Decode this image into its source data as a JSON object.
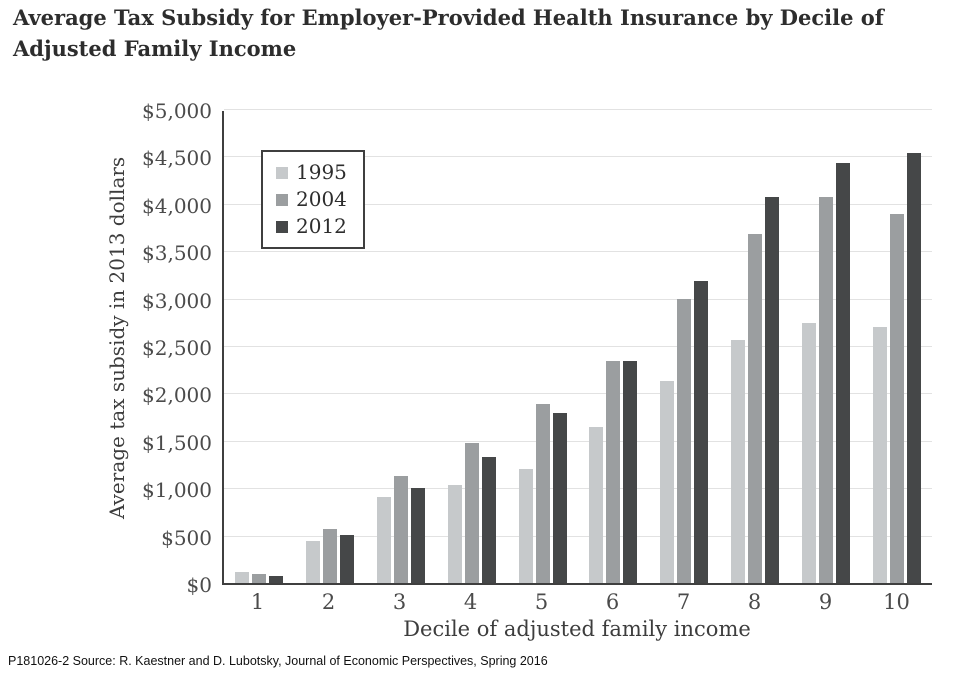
{
  "page": {
    "title_lines": [
      "Average Tax Subsidy for Employer-Provided Health Insurance by Decile of",
      "Adjusted Family Income"
    ],
    "footer": "P181026-2 Source: R. Kaestner and D. Lubotsky, Journal of Economic Perspectives, Spring 2016"
  },
  "chart_data": {
    "type": "bar",
    "title": "Average Tax Subsidy for Employer-Provided Health Insurance by Decile of Adjusted Family Income",
    "xlabel": "Decile of adjusted family income",
    "ylabel": "Average tax subsidy in 2013 dollars",
    "categories": [
      "1",
      "2",
      "3",
      "4",
      "5",
      "6",
      "7",
      "8",
      "9",
      "10"
    ],
    "series": [
      {
        "name": "1995",
        "color": "#c6c9cb",
        "values": [
          120,
          450,
          910,
          1040,
          1210,
          1650,
          2140,
          2570,
          2750,
          2710
        ]
      },
      {
        "name": "2004",
        "color": "#9b9ea0",
        "values": [
          100,
          575,
          1130,
          1480,
          1900,
          2350,
          3010,
          3700,
          4090,
          3910
        ]
      },
      {
        "name": "2012",
        "color": "#454748",
        "values": [
          70,
          510,
          1010,
          1330,
          1800,
          2350,
          3200,
          4090,
          4450,
          4560
        ]
      }
    ],
    "ylim": [
      0,
      5000
    ],
    "ytick_step": 500,
    "ytick_labels": [
      "$0",
      "$500",
      "$1,000",
      "$1,500",
      "$2,000",
      "$2,500",
      "$3,000",
      "$3,500",
      "$4,000",
      "$4,500",
      "$5,000"
    ],
    "grid": "horizontal",
    "legend_position": "top-left-inside",
    "colors": {
      "axis": "#3f3f3f",
      "gridline": "#e2e2e2",
      "tick_text": "#4b4b4b"
    }
  }
}
